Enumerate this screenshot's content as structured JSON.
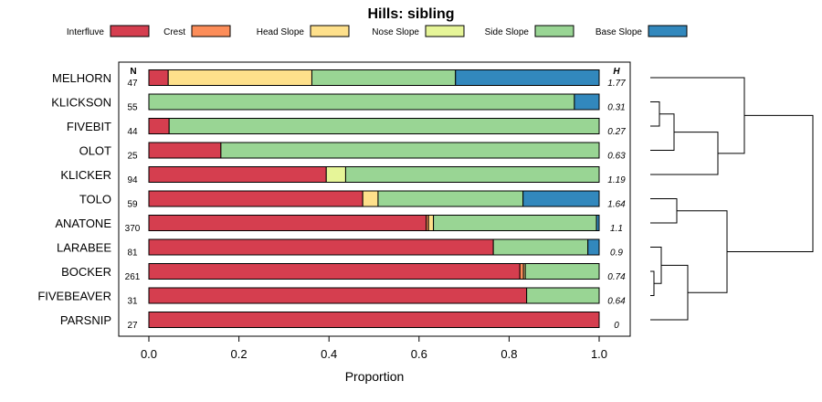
{
  "chart_data": {
    "type": "bar",
    "orientation": "horizontal-stacked",
    "title": "Hills: sibling",
    "xlabel": "Proportion",
    "ylabel": "",
    "xlim": [
      0,
      1
    ],
    "xticks": [
      "0.0",
      "0.2",
      "0.4",
      "0.6",
      "0.8",
      "1.0"
    ],
    "n_header": "N",
    "h_header": "H",
    "legend_position": "top",
    "series": [
      {
        "name": "Interfluve",
        "color": "#d53e4f"
      },
      {
        "name": "Crest",
        "color": "#fc8d59"
      },
      {
        "name": "Head Slope",
        "color": "#fee08b"
      },
      {
        "name": "Nose Slope",
        "color": "#e6f598"
      },
      {
        "name": "Side Slope",
        "color": "#99d594"
      },
      {
        "name": "Base Slope",
        "color": "#3288bd"
      }
    ],
    "categories": [
      "MELHORN",
      "KLICKSON",
      "FIVEBIT",
      "OLOT",
      "KLICKER",
      "TOLO",
      "ANATONE",
      "LARABEE",
      "BOCKER",
      "FIVEBEAVER",
      "PARSNIP"
    ],
    "rows": [
      {
        "name": "MELHORN",
        "n": "47",
        "h": "1.77",
        "values": [
          0.043,
          0,
          0.319,
          0,
          0.319,
          0.319
        ]
      },
      {
        "name": "KLICKSON",
        "n": "55",
        "h": "0.31",
        "values": [
          0,
          0,
          0,
          0,
          0.945,
          0.055
        ]
      },
      {
        "name": "FIVEBIT",
        "n": "44",
        "h": "0.27",
        "values": [
          0.045,
          0,
          0,
          0,
          0.955,
          0
        ]
      },
      {
        "name": "OLOT",
        "n": "25",
        "h": "0.63",
        "values": [
          0.16,
          0,
          0,
          0,
          0.84,
          0
        ]
      },
      {
        "name": "KLICKER",
        "n": "94",
        "h": "1.19",
        "values": [
          0.394,
          0,
          0,
          0.043,
          0.563,
          0
        ]
      },
      {
        "name": "TOLO",
        "n": "59",
        "h": "1.64",
        "values": [
          0.475,
          0,
          0.034,
          0,
          0.322,
          0.169
        ]
      },
      {
        "name": "ANATONE",
        "n": "370",
        "h": "1.1",
        "values": [
          0.616,
          0.005,
          0.011,
          0,
          0.362,
          0.006
        ]
      },
      {
        "name": "LARABEE",
        "n": "81",
        "h": "0.9",
        "values": [
          0.765,
          0,
          0,
          0,
          0.21,
          0.025
        ]
      },
      {
        "name": "BOCKER",
        "n": "261",
        "h": "0.74",
        "values": [
          0.824,
          0.008,
          0.004,
          0,
          0.164,
          0
        ]
      },
      {
        "name": "FIVEBEAVER",
        "n": "31",
        "h": "0.64",
        "values": [
          0.839,
          0,
          0,
          0,
          0.161,
          0
        ]
      },
      {
        "name": "PARSNIP",
        "n": "27",
        "h": "0",
        "values": [
          1.0,
          0,
          0,
          0,
          0,
          0
        ]
      }
    ],
    "dendrogram": "hierarchical clustering of rows (MELHORN..PARSNIP) drawn at right"
  }
}
